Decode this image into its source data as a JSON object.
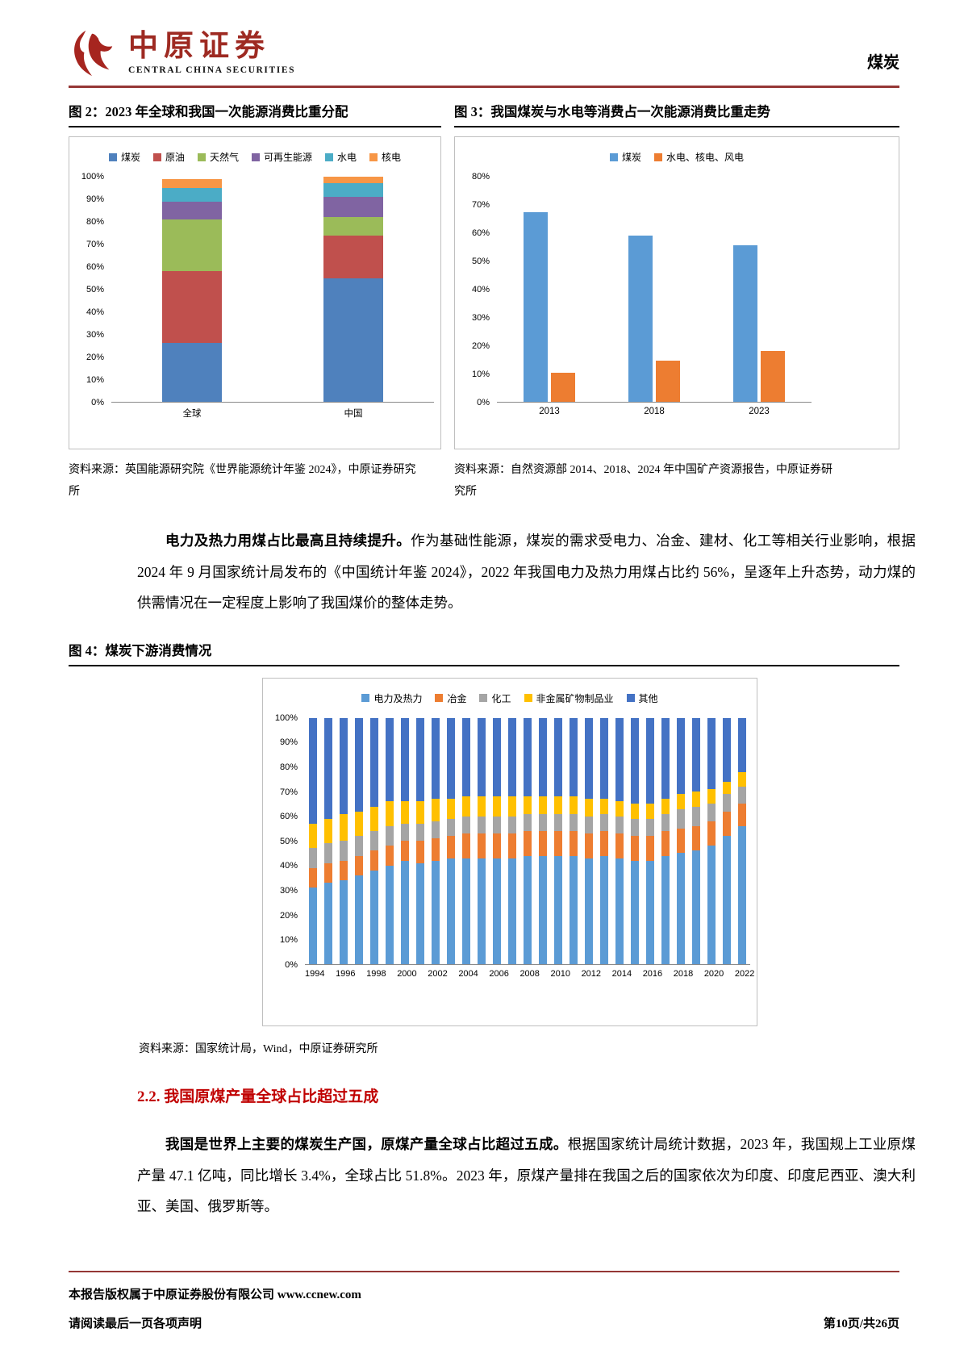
{
  "header": {
    "brand_cn": "中原证券",
    "brand_en": "CENTRAL CHINA SECURITIES",
    "category": "煤炭"
  },
  "colors": {
    "accent_rule": "#953735",
    "section_heading": "#C00000"
  },
  "fig2": {
    "title": "图 2：2023 年全球和我国一次能源消费比重分配",
    "source": "资料来源：英国能源研究院《世界能源统计年鉴 2024》，中原证券研究所"
  },
  "fig3": {
    "title": "图 3：我国煤炭与水电等消费占一次能源消费比重走势",
    "source": "资料来源：自然资源部 2014、2018、2024 年中国矿产资源报告，中原证券研究所"
  },
  "fig4": {
    "title": "图 4：煤炭下游消费情况",
    "source": "资料来源：国家统计局，Wind，中原证券研究所"
  },
  "paragraph1": {
    "lead": "电力及热力用煤占比最高且持续提升。",
    "body": "作为基础性能源，煤炭的需求受电力、冶金、建材、化工等相关行业影响，根据 2024 年 9 月国家统计局发布的《中国统计年鉴 2024》，2022 年我国电力及热力用煤占比约 56%，呈逐年上升态势，动力煤的供需情况在一定程度上影响了我国煤价的整体走势。"
  },
  "section": {
    "heading": "2.2. 我国原煤产量全球占比超过五成"
  },
  "paragraph2": {
    "lead": "我国是世界上主要的煤炭生产国，原煤产量全球占比超过五成。",
    "body": "根据国家统计局统计数据，2023 年，我国规上工业原煤产量 47.1 亿吨，同比增长 3.4%，全球占比 51.8%。2023 年，原煤产量排在我国之后的国家依次为印度、印度尼西亚、澳大利亚、美国、俄罗斯等。"
  },
  "footer": {
    "copyright": "本报告版权属于中原证券股份有限公司 www.ccnew.com",
    "disclaimer": "请阅读最后一页各项声明",
    "page": "第10页/共26页"
  },
  "chart_data": [
    {
      "id": "fig2",
      "type": "bar",
      "stacked": true,
      "title": "2023 年全球和我国一次能源消费比重分配",
      "categories": [
        "全球",
        "中国"
      ],
      "ylim": [
        0,
        100
      ],
      "ystep": 10,
      "legend_position": "top",
      "grid": false,
      "series": [
        {
          "name": "煤炭",
          "color": "#4F81BD",
          "values": [
            26,
            55
          ]
        },
        {
          "name": "原油",
          "color": "#C0504D",
          "values": [
            32,
            19
          ]
        },
        {
          "name": "天然气",
          "color": "#9BBB59",
          "values": [
            23,
            8
          ]
        },
        {
          "name": "可再生能源",
          "color": "#8064A2",
          "values": [
            8,
            9
          ]
        },
        {
          "name": "水电",
          "color": "#4BACC6",
          "values": [
            6,
            6
          ]
        },
        {
          "name": "核电",
          "color": "#F79646",
          "values": [
            4,
            3
          ]
        }
      ]
    },
    {
      "id": "fig3",
      "type": "bar",
      "stacked": false,
      "title": "我国煤炭与水电等消费占一次能源消费比重走势",
      "categories": [
        "2013",
        "2018",
        "2023"
      ],
      "ylim": [
        0,
        80
      ],
      "ystep": 10,
      "legend_position": "top",
      "grid": false,
      "series": [
        {
          "name": "煤炭",
          "color": "#5B9BD5",
          "values": [
            67.5,
            59.0,
            55.5
          ]
        },
        {
          "name": "水电、核电、风电",
          "color": "#ED7D31",
          "values": [
            10.2,
            14.5,
            18.0
          ]
        }
      ]
    },
    {
      "id": "fig4",
      "type": "bar",
      "stacked": true,
      "title": "煤炭下游消费情况",
      "categories": [
        "1994",
        "1995",
        "1996",
        "1997",
        "1998",
        "1999",
        "2000",
        "2001",
        "2002",
        "2003",
        "2004",
        "2005",
        "2006",
        "2007",
        "2008",
        "2009",
        "2010",
        "2011",
        "2012",
        "2013",
        "2014",
        "2015",
        "2016",
        "2017",
        "2018",
        "2019",
        "2020",
        "2021",
        "2022"
      ],
      "xLabelEvery": 2,
      "ylim": [
        0,
        100
      ],
      "ystep": 10,
      "legend_position": "top",
      "grid": false,
      "series": [
        {
          "name": "电力及热力",
          "color": "#5B9BD5",
          "values": [
            31,
            33,
            34,
            36,
            38,
            40,
            42,
            41,
            42,
            43,
            43,
            43,
            43,
            43,
            44,
            44,
            44,
            44,
            43,
            44,
            43,
            42,
            42,
            44,
            45,
            46,
            48,
            52,
            56
          ]
        },
        {
          "name": "冶金",
          "color": "#ED7D31",
          "values": [
            8,
            8,
            8,
            8,
            8,
            8,
            8,
            9,
            9,
            9,
            10,
            10,
            10,
            10,
            10,
            10,
            10,
            10,
            10,
            10,
            10,
            10,
            10,
            10,
            10,
            10,
            10,
            10,
            9
          ]
        },
        {
          "name": "化工",
          "color": "#A5A5A5",
          "values": [
            8,
            8,
            8,
            8,
            8,
            8,
            7,
            7,
            7,
            7,
            7,
            7,
            7,
            7,
            7,
            7,
            7,
            7,
            7,
            7,
            7,
            7,
            7,
            7,
            8,
            8,
            7,
            7,
            7
          ]
        },
        {
          "name": "非金属矿物制品业",
          "color": "#FFC000",
          "values": [
            10,
            10,
            11,
            10,
            10,
            10,
            9,
            9,
            9,
            8,
            8,
            8,
            8,
            8,
            7,
            7,
            7,
            7,
            7,
            6,
            6,
            6,
            6,
            6,
            6,
            6,
            6,
            5,
            6
          ]
        },
        {
          "name": "其他",
          "color": "#4472C4",
          "values": [
            43,
            41,
            39,
            38,
            36,
            34,
            34,
            34,
            33,
            33,
            32,
            32,
            32,
            32,
            32,
            32,
            32,
            32,
            33,
            33,
            34,
            35,
            35,
            33,
            31,
            30,
            29,
            26,
            22
          ]
        }
      ]
    }
  ]
}
